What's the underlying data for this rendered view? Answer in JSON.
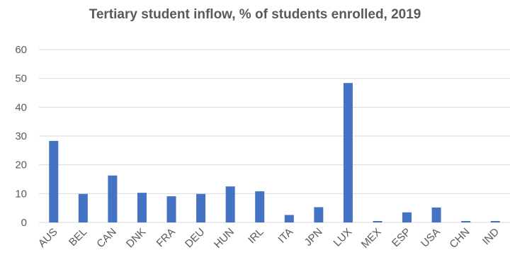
{
  "chart_data": {
    "type": "bar",
    "title": "Tertiary student inflow, % of students enrolled, 2019",
    "xlabel": "",
    "ylabel": "",
    "categories": [
      "AUS",
      "BEL",
      "CAN",
      "DNK",
      "FRA",
      "DEU",
      "HUN",
      "IRL",
      "ITA",
      "JPN",
      "LUX",
      "MEX",
      "ESP",
      "USA",
      "CHN",
      "IND"
    ],
    "values": [
      28.3,
      9.9,
      16.3,
      10.3,
      9.1,
      9.9,
      12.5,
      10.8,
      2.6,
      5.3,
      48.4,
      0.5,
      3.5,
      5.2,
      0.5,
      0.5
    ],
    "ylim": [
      0,
      60
    ],
    "yticks": [
      0,
      10,
      20,
      30,
      40,
      50,
      60
    ],
    "grid": true,
    "legend": "none",
    "bar_color": "#4472C4",
    "grid_color": "#D9D9D9",
    "text_color": "#595959"
  }
}
